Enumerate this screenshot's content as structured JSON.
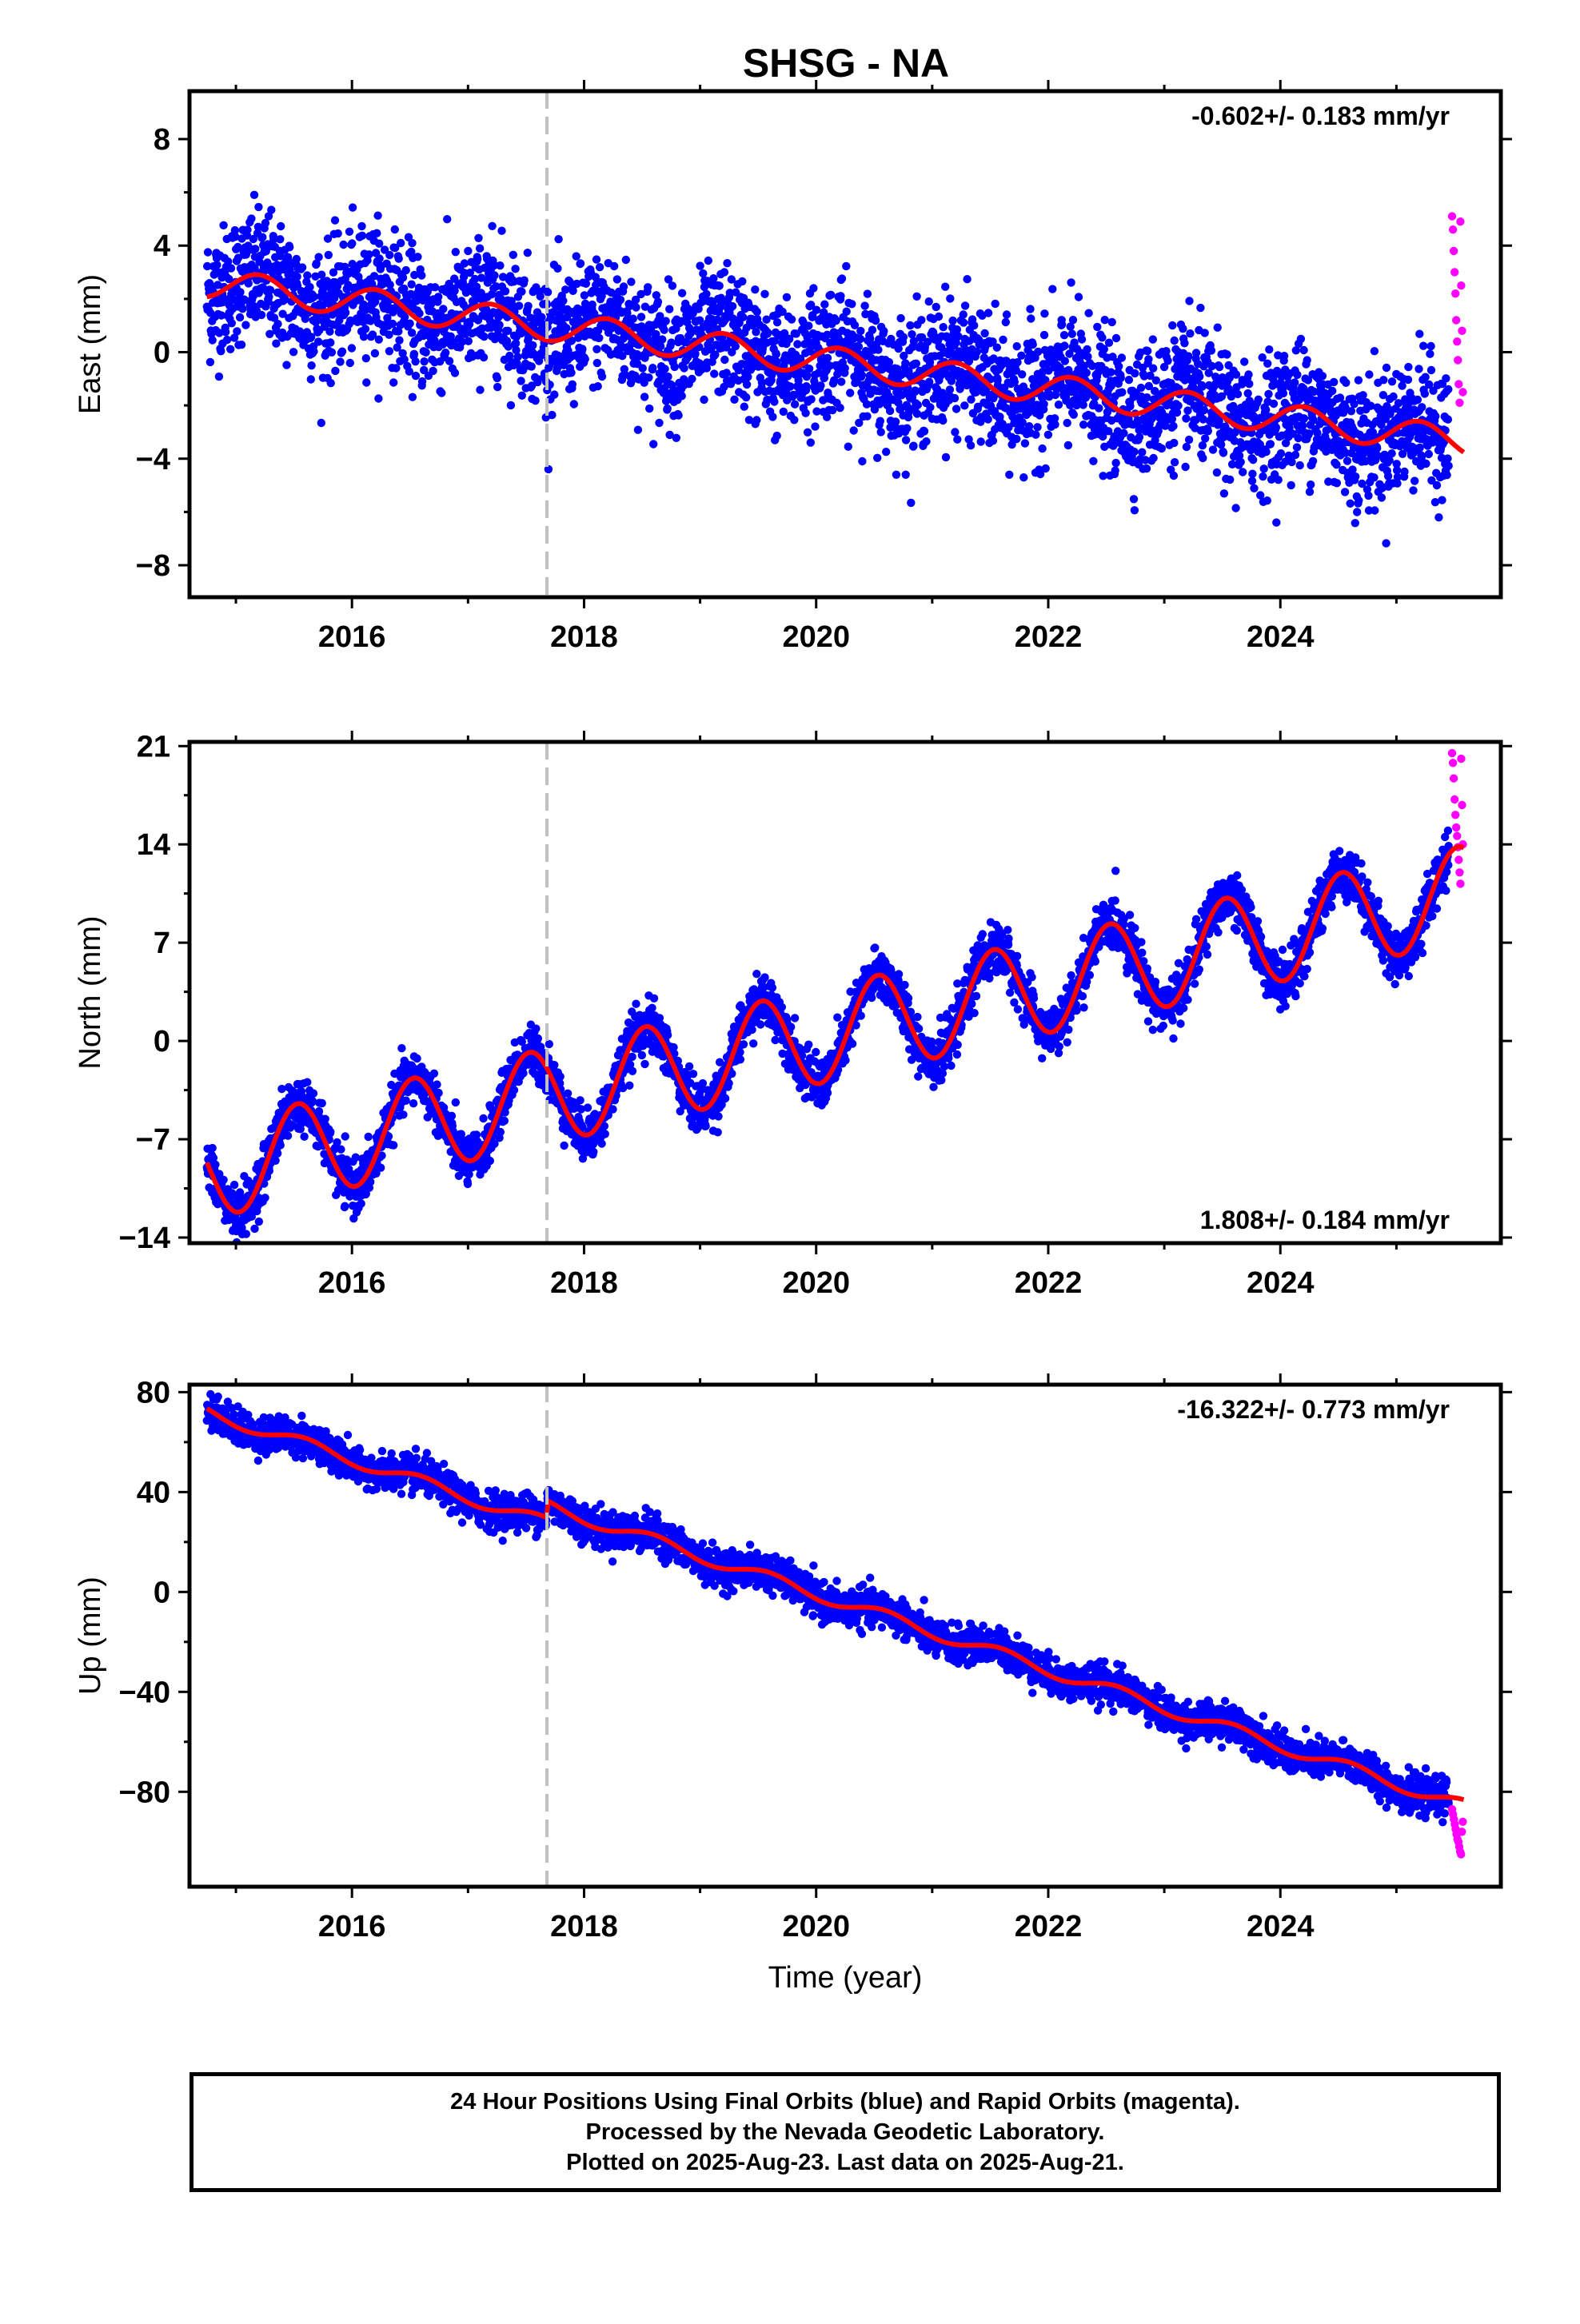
{
  "chart_data": [
    {
      "type": "scatter",
      "title": "SHSG - NA",
      "ylabel": "East (mm)",
      "xlabel": "",
      "rate_label": "-0.602+/- 0.183 mm/yr",
      "rate_position": "top-right",
      "xlim": [
        2014.6,
        2025.9
      ],
      "ylim": [
        -9.2,
        9.8
      ],
      "yticks": [
        8,
        4,
        0,
        -4,
        -8
      ],
      "ytick_labels": [
        "8",
        "4",
        "0",
        "−4",
        "−8"
      ],
      "xticks": [
        2016,
        2018,
        2020,
        2022,
        2024
      ],
      "xtick_labels": [
        "2016",
        "2018",
        "2020",
        "2022",
        "2024"
      ],
      "reference_line_x": 2017.68,
      "series": [
        {
          "color": "#0000ff",
          "marker": "dot",
          "trend_start": 2.6,
          "rate_per_year": -0.55,
          "annual_amplitude": 0.55,
          "annual_phase": 0.2,
          "scatter_sd": 1.2,
          "x_range": [
            2014.75,
            2025.45
          ],
          "offset_at_x": null,
          "offset_size": 0
        },
        {
          "color": "#ff00ff",
          "marker": "dot",
          "x_range": [
            2025.48,
            2025.58
          ],
          "y_values": [
            5.1,
            4.6,
            3.8,
            3.0,
            2.2,
            1.2,
            0.4,
            -0.3,
            -1.2,
            -1.9,
            4.9,
            2.5,
            0.8,
            -1.5
          ]
        },
        {
          "color": "#ff0000",
          "marker": "line",
          "role": "fit"
        }
      ]
    },
    {
      "type": "scatter",
      "title": "",
      "ylabel": "North (mm)",
      "xlabel": "",
      "rate_label": "1.808+/- 0.184 mm/yr",
      "rate_position": "bottom-right",
      "xlim": [
        2014.6,
        2025.9
      ],
      "ylim": [
        -14.4,
        21.3
      ],
      "yticks": [
        21,
        14,
        7,
        0,
        -7,
        -14
      ],
      "ytick_labels": [
        "21",
        "14",
        "7",
        "0",
        "−7",
        "−14"
      ],
      "xticks": [
        2016,
        2018,
        2020,
        2022,
        2024
      ],
      "xtick_labels": [
        "2016",
        "2018",
        "2020",
        "2022",
        "2024"
      ],
      "reference_line_x": 2017.68,
      "series": [
        {
          "color": "#0000ff",
          "marker": "dot",
          "trend_start": -9.3,
          "rate_per_year": 1.83,
          "annual_amplitude": 3.4,
          "annual_phase": 0.53,
          "scatter_sd": 0.9,
          "x_range": [
            2014.75,
            2025.45
          ],
          "offset_at_x": null,
          "offset_size": 0
        },
        {
          "color": "#ff00ff",
          "marker": "dot",
          "x_range": [
            2025.48,
            2025.58
          ],
          "y_values": [
            20.5,
            19.8,
            18.7,
            17.2,
            16.1,
            15.2,
            14.6,
            13.8,
            12.9,
            12.0,
            11.2,
            20.1,
            16.8,
            14.0
          ]
        },
        {
          "color": "#ff0000",
          "marker": "line",
          "role": "fit"
        }
      ]
    },
    {
      "type": "scatter",
      "title": "",
      "ylabel": "Up (mm)",
      "xlabel": "Time (year)",
      "rate_label": "-16.322+/- 0.773 mm/yr",
      "rate_position": "top-right",
      "xlim": [
        2014.6,
        2025.9
      ],
      "ylim": [
        -118,
        83
      ],
      "yticks": [
        80,
        40,
        0,
        -40,
        -80
      ],
      "ytick_labels": [
        "80",
        "40",
        "0",
        "−40",
        "−80"
      ],
      "xticks": [
        2016,
        2018,
        2020,
        2022,
        2024
      ],
      "xtick_labels": [
        "2016",
        "2018",
        "2020",
        "2022",
        "2024"
      ],
      "reference_line_x": 2017.68,
      "series": [
        {
          "color": "#0000ff",
          "marker": "dot",
          "trend_start": 72,
          "rate_per_year": -15.2,
          "annual_amplitude": 2.5,
          "annual_phase": 0.6,
          "scatter_sd": 3.6,
          "x_range": [
            2014.75,
            2025.45
          ],
          "offset_at_x": 2017.68,
          "offset_size": 7
        },
        {
          "color": "#ff00ff",
          "marker": "dot",
          "x_range": [
            2025.48,
            2025.58
          ],
          "y_values": [
            -87,
            -89,
            -91,
            -93,
            -95,
            -97,
            -99,
            -100,
            -102,
            -104,
            -105,
            -96,
            -92
          ]
        },
        {
          "color": "#ff0000",
          "marker": "line",
          "role": "fit"
        }
      ]
    }
  ],
  "caption": {
    "line1": "24 Hour Positions Using Final Orbits (blue) and Rapid Orbits (magenta).",
    "line2": "Processed by the Nevada Geodetic Laboratory.",
    "line3": "Plotted on 2025-Aug-23. Last data on 2025-Aug-21."
  }
}
